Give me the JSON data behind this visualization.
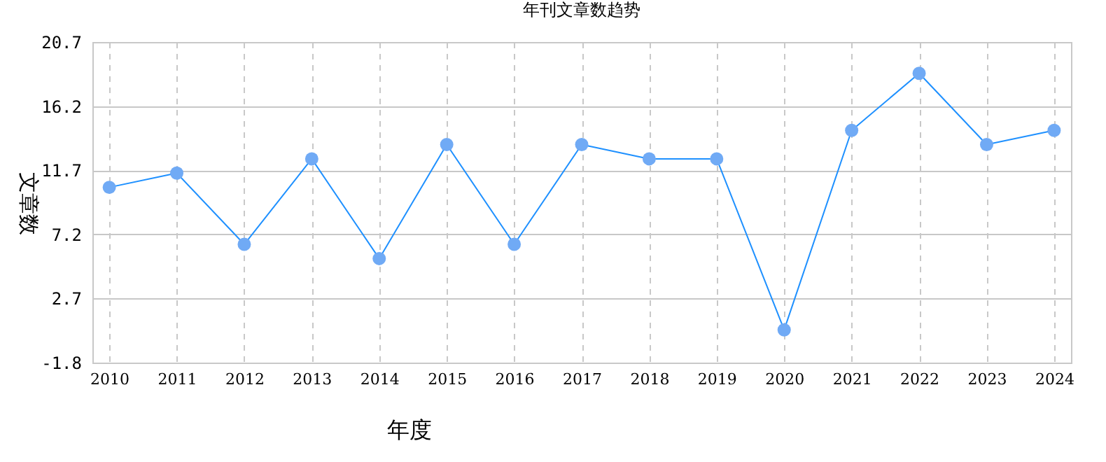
{
  "chart_data": {
    "type": "line",
    "title": "年刊文章数趋势",
    "xlabel": "年度",
    "ylabel": "文章数",
    "categories": [
      "2010",
      "2011",
      "2012",
      "2013",
      "2014",
      "2015",
      "2016",
      "2017",
      "2018",
      "2019",
      "2020",
      "2021",
      "2022",
      "2023",
      "2024"
    ],
    "series": [
      {
        "color": "#1e90ff",
        "values": [
          10.5,
          11.5,
          6.5,
          12.5,
          5.5,
          13.5,
          6.5,
          13.5,
          12.5,
          12.5,
          0.5,
          14.5,
          18.5,
          13.5,
          14.5
        ]
      }
    ],
    "ylim": [
      -1.8,
      20.7
    ],
    "yticks": [
      -1.8,
      2.7,
      7.2,
      11.7,
      16.2,
      20.7
    ],
    "grid": true,
    "marker": "circle",
    "line_style": "solid"
  }
}
